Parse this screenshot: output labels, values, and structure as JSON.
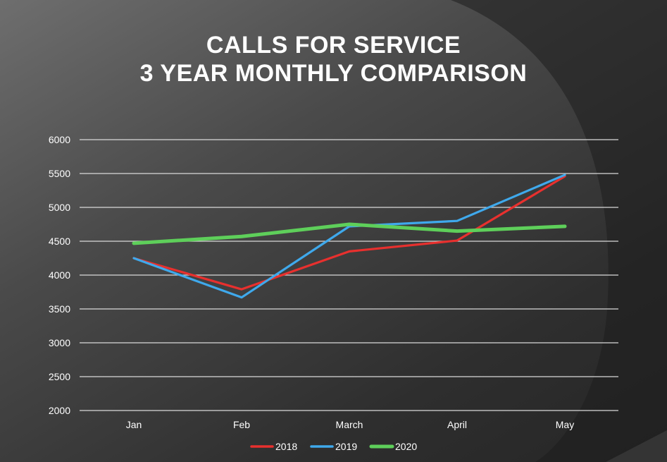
{
  "title": {
    "line1": "CALLS FOR SERVICE",
    "line2": "3 YEAR MONTHLY COMPARISON"
  },
  "chart_data": {
    "type": "line",
    "categories": [
      "Jan",
      "Feb",
      "March",
      "April",
      "May"
    ],
    "series": [
      {
        "name": "2018",
        "color": "#e8302e",
        "values": [
          4250,
          3790,
          4350,
          4510,
          5460
        ]
      },
      {
        "name": "2019",
        "color": "#3fa9ec",
        "values": [
          4250,
          3670,
          4720,
          4800,
          5480
        ]
      },
      {
        "name": "2020",
        "color": "#5ecf5a",
        "values": [
          4470,
          4570,
          4750,
          4650,
          4720
        ]
      }
    ],
    "ylim": [
      2000,
      6000
    ],
    "yticks": [
      2000,
      2500,
      3000,
      3500,
      4000,
      4500,
      5000,
      5500,
      6000
    ],
    "grid": true,
    "legend_position": "bottom"
  }
}
